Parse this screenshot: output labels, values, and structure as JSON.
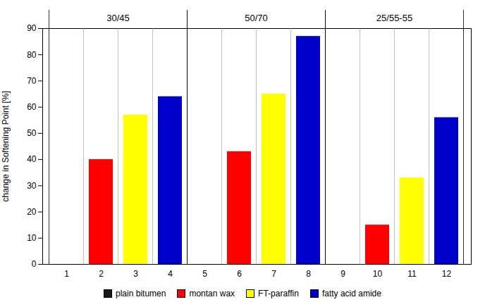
{
  "chart_data": {
    "type": "bar",
    "ylabel": "change in Softening Point [%]",
    "categories": [
      "1",
      "2",
      "3",
      "4",
      "5",
      "6",
      "7",
      "8",
      "9",
      "10",
      "11",
      "12"
    ],
    "series": [
      {
        "name": "plain bitumen",
        "color": "#1A1A1A",
        "values": [
          null,
          null,
          null,
          null,
          null,
          null,
          null,
          null,
          null,
          null,
          null,
          null
        ]
      },
      {
        "name": "montan wax",
        "color": "#FF0000",
        "values": [
          null,
          40,
          null,
          null,
          null,
          43,
          null,
          null,
          null,
          15,
          null,
          null
        ]
      },
      {
        "name": "FT-paraffin",
        "color": "#FFFF00",
        "values": [
          null,
          null,
          57,
          null,
          null,
          null,
          65,
          null,
          null,
          null,
          33,
          null
        ]
      },
      {
        "name": "fatty acid amide",
        "color": "#0000CC",
        "values": [
          null,
          null,
          null,
          64,
          null,
          null,
          null,
          87,
          null,
          null,
          null,
          56
        ]
      }
    ],
    "groups": [
      {
        "label": "30/45",
        "categories": [
          "1",
          "2",
          "3",
          "4"
        ]
      },
      {
        "label": "50/70",
        "categories": [
          "5",
          "6",
          "7",
          "8"
        ]
      },
      {
        "label": "25/55-55",
        "categories": [
          "9",
          "10",
          "11",
          "12"
        ]
      }
    ],
    "ylim": [
      0,
      90
    ],
    "yticks": [
      0,
      10,
      20,
      30,
      40,
      50,
      60,
      70,
      80,
      90
    ],
    "grid": false,
    "legend": "bottom"
  }
}
